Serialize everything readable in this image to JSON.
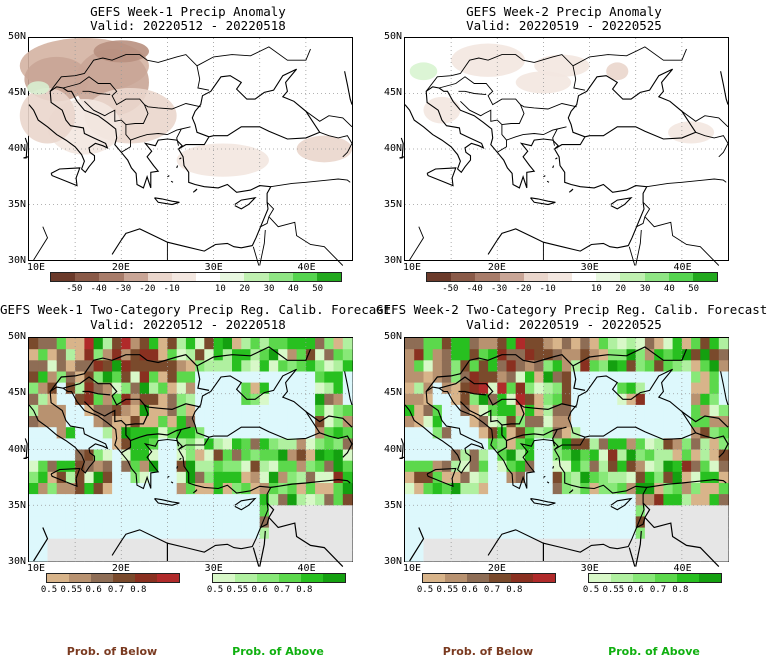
{
  "panels": [
    {
      "title": "GEFS Week-1 Precip Anomaly",
      "valid": "Valid: 20220512 - 20220518"
    },
    {
      "title": "GEFS Week-2 Precip Anomaly",
      "valid": "Valid: 20220519 - 20220525"
    },
    {
      "title": "GEFS Week-1 Two-Category Precip Reg. Calib. Forecast",
      "valid": "Valid: 20220512 - 20220518"
    },
    {
      "title": "GEFS Week-2 Two-Category Precip Reg. Calib. Forecast",
      "valid": "Valid: 20220519 - 20220525"
    }
  ],
  "lat_labels": [
    "50N",
    "45N",
    "40N",
    "35N",
    "30N"
  ],
  "lon_labels": [
    "10E",
    "20E",
    "30E",
    "40E"
  ],
  "anomaly_scale": {
    "ticks": [
      "-50",
      "-40",
      "-30",
      "-20",
      "-10",
      "10",
      "20",
      "30",
      "40",
      "50"
    ],
    "colors": [
      "#6b3a2a",
      "#8a5a48",
      "#a87c6a",
      "#c9a596",
      "#ead6cc",
      "#f3e7e0",
      "#ffffff",
      "#e8f8e0",
      "#bff0b0",
      "#8fe584",
      "#55d44f",
      "#22a81e"
    ]
  },
  "below_scale": {
    "ticks": [
      "0.5",
      "0.55",
      "0.6",
      "0.7",
      "0.8"
    ],
    "colors": [
      "#d8b48a",
      "#b89270",
      "#8e6d55",
      "#7a4a2c",
      "#8a3020",
      "#b02a2a"
    ]
  },
  "above_scale": {
    "ticks": [
      "0.5",
      "0.55",
      "0.6",
      "0.7",
      "0.8"
    ],
    "colors": [
      "#d8f8c8",
      "#b0f0a0",
      "#88e878",
      "#5cd84c",
      "#28c020",
      "#14a010"
    ]
  },
  "prob_below": "Prob. of Below",
  "prob_above": "Prob. of Above",
  "colors": {
    "sea_prob": "#ddf8fc",
    "land_missing": "#e6e6e6",
    "below_text": "#7a3a20",
    "above_text": "#10b010"
  }
}
